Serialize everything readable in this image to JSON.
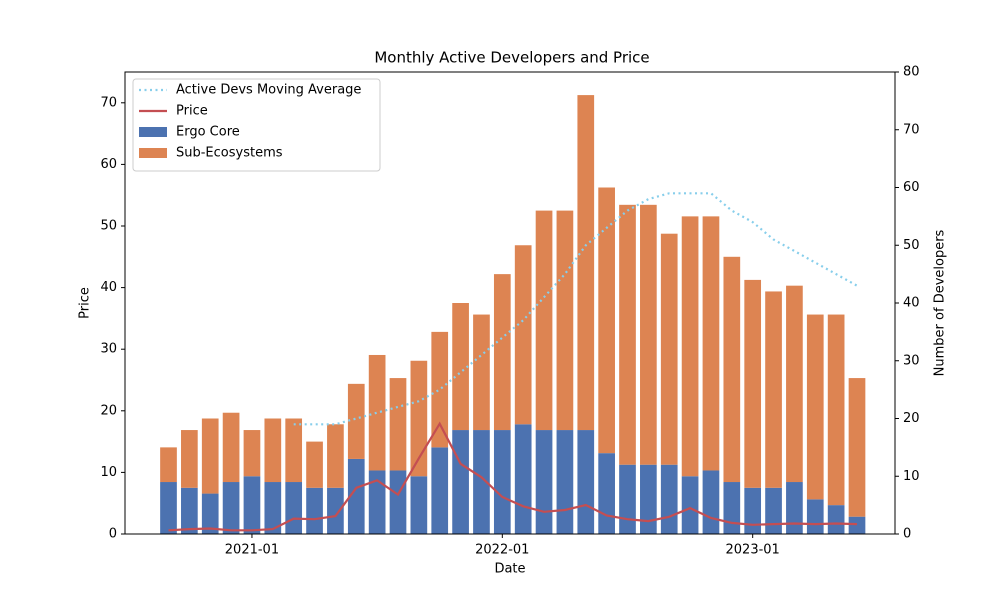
{
  "chart_data": {
    "type": "bar",
    "title": "Monthly Active Developers and Price",
    "xlabel": "Date",
    "ylabel": "Price",
    "y2label": "Number of Developers",
    "x": [
      "2020-09",
      "2020-10",
      "2020-11",
      "2020-12",
      "2021-01",
      "2021-02",
      "2021-03",
      "2021-04",
      "2021-05",
      "2021-06",
      "2021-07",
      "2021-08",
      "2021-09",
      "2021-10",
      "2021-11",
      "2021-12",
      "2022-01",
      "2022-02",
      "2022-03",
      "2022-04",
      "2022-05",
      "2022-06",
      "2022-07",
      "2022-08",
      "2022-09",
      "2022-10",
      "2022-11",
      "2022-12",
      "2023-01",
      "2023-02",
      "2023-03",
      "2023-04",
      "2023-05",
      "2023-06"
    ],
    "xticks": [
      "2021-01",
      "2022-01",
      "2023-01"
    ],
    "ylim": [
      0,
      75
    ],
    "yticks": [
      0,
      10,
      20,
      30,
      40,
      50,
      60,
      70
    ],
    "y2lim": [
      0,
      80
    ],
    "y2ticks": [
      0,
      10,
      20,
      30,
      40,
      50,
      60,
      70,
      80
    ],
    "legend": "upper left",
    "series": [
      {
        "name": "Active Devs Moving Average",
        "type": "line",
        "linestyle": "dotted",
        "axis": "y2",
        "color": "#87ceeb",
        "values": [
          null,
          null,
          null,
          null,
          null,
          null,
          19,
          19,
          19,
          20,
          21,
          22,
          23,
          25,
          28,
          31,
          34,
          37,
          41,
          45,
          50,
          53,
          56,
          58,
          59,
          59,
          59,
          56,
          54,
          51,
          49,
          47,
          45,
          43
        ]
      },
      {
        "name": "Price",
        "type": "line",
        "linestyle": "solid",
        "color": "#c44e52",
        "values": [
          0.6,
          0.8,
          0.9,
          0.6,
          0.6,
          0.8,
          2.5,
          2.4,
          2.9,
          7.5,
          8.7,
          6.4,
          12.3,
          17.9,
          11.4,
          9.2,
          6,
          4.5,
          3.6,
          3.9,
          4.7,
          3,
          2.4,
          2.1,
          2.8,
          4.2,
          2.6,
          1.8,
          1.5,
          1.6,
          1.7,
          1.6,
          1.7,
          1.6
        ]
      },
      {
        "name": "Ergo Core",
        "type": "bar",
        "axis": "y2",
        "color": "#4c72b0",
        "values": [
          9,
          8,
          7,
          9,
          10,
          9,
          9,
          8,
          8,
          13,
          11,
          11,
          10,
          15,
          18,
          18,
          18,
          19,
          18,
          18,
          18,
          14,
          12,
          12,
          12,
          10,
          11,
          9,
          8,
          8,
          9,
          6,
          5,
          3
        ]
      },
      {
        "name": "Sub-Ecosystems",
        "type": "bar",
        "axis": "y2",
        "color": "#dd8452",
        "values": [
          6,
          10,
          13,
          12,
          8,
          11,
          11,
          8,
          11,
          13,
          20,
          16,
          20,
          20,
          22,
          20,
          27,
          31,
          38,
          38,
          58,
          46,
          45,
          45,
          40,
          45,
          44,
          39,
          36,
          34,
          34,
          32,
          33,
          24
        ]
      }
    ]
  }
}
